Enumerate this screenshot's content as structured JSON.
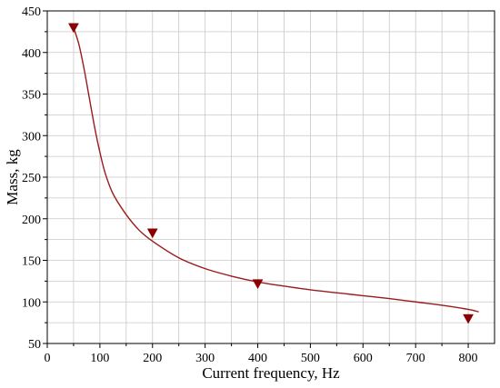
{
  "chart_data": {
    "type": "scatter",
    "title": "",
    "xlabel": "Current frequency, Hz",
    "ylabel": "Mass, kg",
    "xlim": [
      0,
      850
    ],
    "ylim": [
      50,
      450
    ],
    "x_ticks": [
      0,
      100,
      200,
      300,
      400,
      500,
      600,
      700,
      800
    ],
    "y_ticks": [
      50,
      100,
      150,
      200,
      250,
      300,
      350,
      400,
      450
    ],
    "x_minor_step": 50,
    "y_minor_step": 25,
    "grid": true,
    "legend": "none",
    "series": [
      {
        "kind": "points",
        "marker": "triangle-down",
        "color": "#8b0000",
        "x": [
          50,
          200,
          400,
          800
        ],
        "y": [
          430,
          183,
          122,
          80
        ]
      },
      {
        "kind": "fit-line",
        "color": "#9b1b1b",
        "x": [
          50,
          60,
          70,
          80,
          90,
          100,
          110,
          125,
          150,
          175,
          200,
          250,
          300,
          350,
          400,
          450,
          500,
          550,
          600,
          650,
          700,
          750,
          800,
          820
        ],
        "y": [
          430,
          410,
          380,
          345,
          310,
          280,
          255,
          230,
          205,
          186,
          173,
          153,
          140,
          131,
          124,
          119,
          114.5,
          111,
          107.5,
          104,
          100,
          96,
          91,
          88
        ]
      }
    ]
  }
}
